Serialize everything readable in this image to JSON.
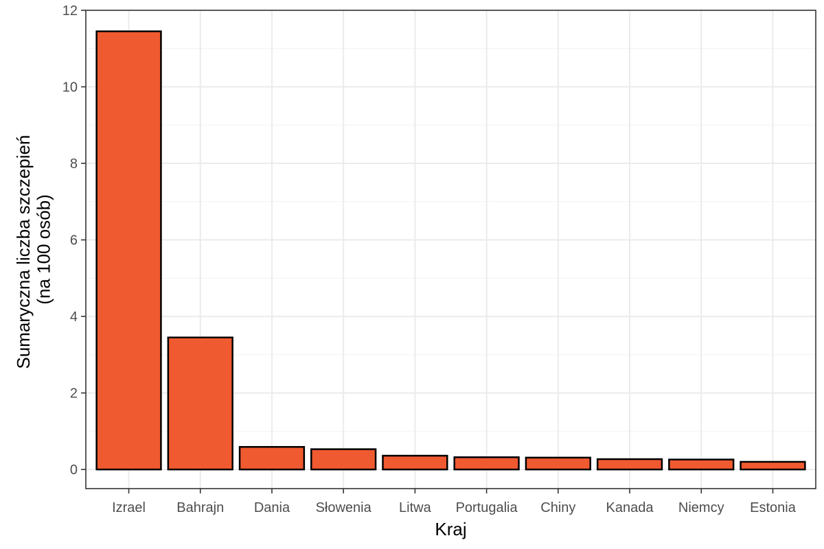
{
  "chart_data": {
    "type": "bar",
    "title": "",
    "xlabel": "Kraj",
    "ylabel_lines": [
      "Sumaryczna liczba szczepień",
      "(na 100 osób)"
    ],
    "categories": [
      "Izrael",
      "Bahrajn",
      "Dania",
      "Słowenia",
      "Litwa",
      "Portugalia",
      "Chiny",
      "Kanada",
      "Niemcy",
      "Estonia"
    ],
    "values": [
      11.45,
      3.45,
      0.59,
      0.53,
      0.36,
      0.32,
      0.31,
      0.27,
      0.26,
      0.2
    ],
    "ylim": [
      -0.5,
      12
    ],
    "yticks": [
      0,
      2,
      4,
      6,
      8,
      10,
      12
    ],
    "ytick_labels": [
      "0",
      "2",
      "4",
      "6",
      "8",
      "10",
      "12"
    ],
    "grid": true,
    "legend": "none",
    "colors": {
      "bar_fill": "#f05a30",
      "bar_stroke": "#000000",
      "grid_major": "#ebebeb",
      "grid_minor": "#f2f2f2",
      "panel_border": "#333333",
      "tick_text": "#4d4d4d",
      "title_text": "#000000"
    }
  }
}
